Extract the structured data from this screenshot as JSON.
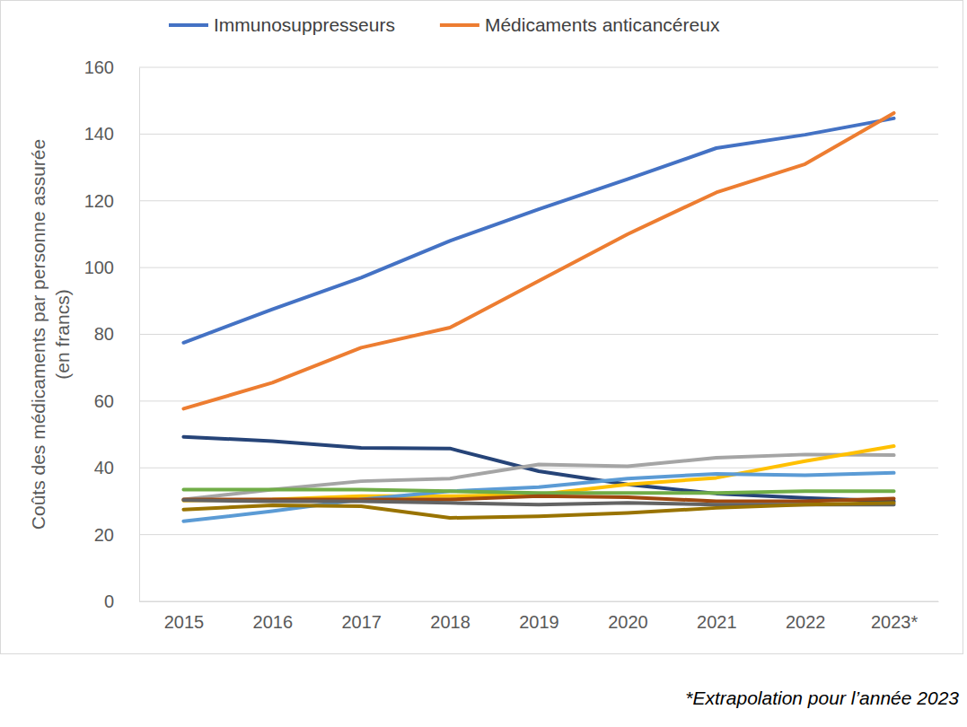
{
  "chart_data": {
    "type": "line",
    "ylabel": [
      "Coûts des médicaments par personne assurée",
      "(en francs)"
    ],
    "annotation": "*Extrapolation pour l’année 2023",
    "categories": [
      "2015",
      "2016",
      "2017",
      "2018",
      "2019",
      "2020",
      "2021",
      "2022",
      "2023*"
    ],
    "ylim": [
      0,
      160
    ],
    "yticks": [
      0,
      20,
      40,
      60,
      80,
      100,
      120,
      140,
      160
    ],
    "grid": true,
    "legend": "top",
    "series": [
      {
        "name": "Immunosuppresseurs",
        "color": "#4472c4",
        "values": [
          77.5,
          87.5,
          97,
          108,
          117.5,
          126.5,
          135.8,
          139.8,
          144.7
        ]
      },
      {
        "name": "Médicaments anticancéreux",
        "color": "#ed7d31",
        "values": [
          57.7,
          65.5,
          76,
          82,
          96,
          110,
          122.5,
          131,
          146.3
        ]
      },
      {
        "color": "#264478",
        "values": [
          49.3,
          48,
          46,
          45.8,
          39,
          35,
          32.3,
          31,
          30
        ]
      },
      {
        "color": "#a5a5a5",
        "values": [
          30.5,
          33.5,
          36,
          36.8,
          41,
          40.5,
          43,
          44,
          43.8
        ]
      },
      {
        "color": "#ffc000",
        "values": [
          30.2,
          30.5,
          31.5,
          31.5,
          32,
          35,
          37,
          42,
          46.5
        ]
      },
      {
        "color": "#5b9bd5",
        "values": [
          24,
          27,
          30.5,
          33,
          34.2,
          36.8,
          38.2,
          37.8,
          38.5
        ]
      },
      {
        "color": "#70ad47",
        "values": [
          33.5,
          33.5,
          33.5,
          33,
          32.5,
          32.5,
          32.5,
          33,
          33
        ]
      },
      {
        "color": "#9e480e",
        "values": [
          30.5,
          30.5,
          30.5,
          30.5,
          31.5,
          31.2,
          30,
          30,
          30.8
        ]
      },
      {
        "color": "#636363",
        "values": [
          30.3,
          30,
          30,
          29.5,
          29,
          29.5,
          29,
          29,
          29
        ]
      },
      {
        "color": "#997300",
        "values": [
          27.5,
          28.8,
          28.5,
          25,
          25.5,
          26.5,
          28,
          29,
          29.5
        ]
      }
    ]
  }
}
